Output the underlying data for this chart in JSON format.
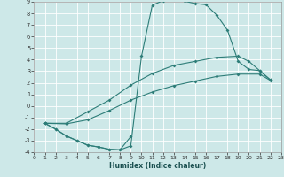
{
  "xlabel": "Humidex (Indice chaleur)",
  "bg_color": "#cde8e8",
  "grid_color": "#b8d8d8",
  "line_color": "#2d7d78",
  "xlim": [
    0,
    23
  ],
  "ylim": [
    -4,
    9
  ],
  "xticks": [
    0,
    1,
    2,
    3,
    4,
    5,
    6,
    7,
    8,
    9,
    10,
    11,
    12,
    13,
    14,
    15,
    16,
    17,
    18,
    19,
    20,
    21,
    22,
    23
  ],
  "yticks": [
    -4,
    -3,
    -2,
    -1,
    0,
    1,
    2,
    3,
    4,
    5,
    6,
    7,
    8,
    9
  ],
  "curve_main_x": [
    1,
    2,
    3,
    4,
    5,
    6,
    7,
    8,
    9,
    10,
    11,
    12,
    13,
    14,
    15,
    16,
    17,
    18,
    19,
    20,
    21,
    22
  ],
  "curve_main_y": [
    -1.5,
    -2.0,
    -2.6,
    -3.0,
    -3.4,
    -3.55,
    -3.75,
    -3.8,
    -3.45,
    4.3,
    8.7,
    9.1,
    9.2,
    9.05,
    8.85,
    8.75,
    7.85,
    6.55,
    3.85,
    3.15,
    3.05,
    2.25
  ],
  "curve_upper_x": [
    1,
    3,
    5,
    7,
    9,
    11,
    13,
    15,
    17,
    19,
    20,
    21,
    22
  ],
  "curve_upper_y": [
    -1.5,
    -1.5,
    -0.5,
    0.5,
    1.8,
    2.8,
    3.5,
    3.85,
    4.2,
    4.3,
    3.85,
    3.05,
    2.25
  ],
  "curve_lower_x": [
    1,
    3,
    5,
    7,
    9,
    11,
    13,
    15,
    17,
    19,
    21,
    22
  ],
  "curve_lower_y": [
    -1.5,
    -1.55,
    -1.2,
    -0.4,
    0.5,
    1.2,
    1.75,
    2.15,
    2.55,
    2.75,
    2.75,
    2.2
  ],
  "curve_bot_x": [
    1,
    2,
    3,
    4,
    5,
    6,
    7,
    8,
    9
  ],
  "curve_bot_y": [
    -1.5,
    -2.0,
    -2.6,
    -3.0,
    -3.4,
    -3.55,
    -3.75,
    -3.8,
    -2.65
  ]
}
